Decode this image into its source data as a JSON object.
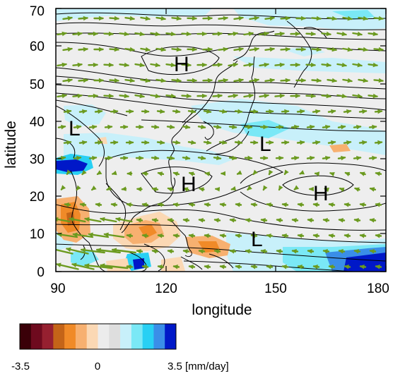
{
  "map": {
    "xlabel": "longitude",
    "ylabel": "latitude",
    "xlim": [
      90,
      180
    ],
    "ylim": [
      0,
      70
    ],
    "x_ticks": [
      "90",
      "120",
      "150",
      "180"
    ],
    "y_ticks": [
      "0",
      "10",
      "20",
      "30",
      "40",
      "50",
      "60",
      "70"
    ],
    "pressure_systems": [
      {
        "label": "H",
        "lon": 124,
        "lat": 56
      },
      {
        "label": "L",
        "lon": 95,
        "lat": 38
      },
      {
        "label": "L",
        "lon": 147,
        "lat": 35
      },
      {
        "label": "H",
        "lon": 126,
        "lat": 24
      },
      {
        "label": "H",
        "lon": 161,
        "lat": 21
      },
      {
        "label": "L",
        "lon": 145,
        "lat": 9
      }
    ],
    "colors": {
      "vector": "#6b9a1f",
      "contour": "#000000",
      "land_outline": "#000000",
      "frame": "#000000"
    }
  },
  "colorbar": {
    "min_label": "-3.5",
    "mid_label": "0",
    "max_label": "3.5 [mm/day]",
    "colors": [
      "#3a0008",
      "#6e0a1e",
      "#962030",
      "#c46418",
      "#f08a28",
      "#f7b070",
      "#fbd8b4",
      "#ececec",
      "#dedede",
      "#c8f0fa",
      "#7ae8f6",
      "#28d0f4",
      "#3a8ee8",
      "#0018c8"
    ]
  }
}
